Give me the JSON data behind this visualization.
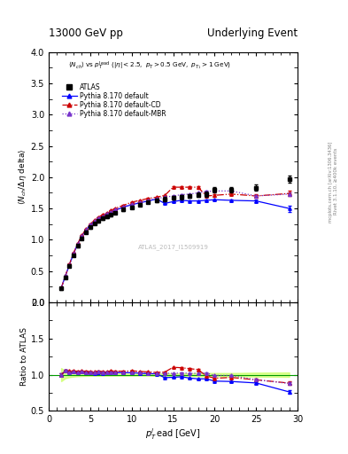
{
  "title_left": "13000 GeV pp",
  "title_right": "Underlying Event",
  "right_label_top": "Rivet 3.1.10, ≥400k events",
  "right_label_bot": "mcplots.cern.ch [arXiv:1306.3436]",
  "watermark": "ATLAS_2017_I1509919",
  "ylabel_main": "⟨N_{ch} / Δη delta⟩",
  "ylabel_ratio": "Ratio to ATLAS",
  "xlabel": "p_{T}^{l}ead [GeV]",
  "xlim": [
    0,
    30
  ],
  "ylim_main": [
    0,
    4
  ],
  "ylim_ratio": [
    0.5,
    2
  ],
  "yticks_main": [
    0,
    0.5,
    1.0,
    1.5,
    2.0,
    2.5,
    3.0,
    3.5,
    4.0
  ],
  "yticks_ratio": [
    0.5,
    1.0,
    1.5,
    2.0
  ],
  "atlas_x": [
    1.5,
    2.0,
    2.5,
    3.0,
    3.5,
    4.0,
    4.5,
    5.0,
    5.5,
    6.0,
    6.5,
    7.0,
    7.5,
    8.0,
    9.0,
    10.0,
    11.0,
    12.0,
    13.0,
    14.0,
    15.0,
    16.0,
    17.0,
    18.0,
    19.0,
    20.0,
    22.0,
    25.0,
    29.0
  ],
  "atlas_y": [
    0.22,
    0.4,
    0.58,
    0.75,
    0.9,
    1.02,
    1.12,
    1.2,
    1.26,
    1.3,
    1.34,
    1.37,
    1.4,
    1.43,
    1.48,
    1.52,
    1.56,
    1.6,
    1.63,
    1.65,
    1.67,
    1.68,
    1.7,
    1.72,
    1.73,
    1.8,
    1.8,
    1.83,
    1.97
  ],
  "atlas_yerr": [
    0.02,
    0.02,
    0.02,
    0.02,
    0.02,
    0.02,
    0.02,
    0.02,
    0.02,
    0.02,
    0.02,
    0.02,
    0.02,
    0.02,
    0.02,
    0.02,
    0.02,
    0.02,
    0.03,
    0.03,
    0.03,
    0.03,
    0.03,
    0.04,
    0.04,
    0.04,
    0.04,
    0.05,
    0.06
  ],
  "py_default_x": [
    1.5,
    2.0,
    2.5,
    3.0,
    3.5,
    4.0,
    4.5,
    5.0,
    5.5,
    6.0,
    6.5,
    7.0,
    7.5,
    8.0,
    9.0,
    10.0,
    11.0,
    12.0,
    13.0,
    14.0,
    15.0,
    16.0,
    17.0,
    18.0,
    19.0,
    20.0,
    22.0,
    25.0,
    29.0
  ],
  "py_default_y": [
    0.22,
    0.42,
    0.6,
    0.78,
    0.93,
    1.06,
    1.16,
    1.23,
    1.29,
    1.34,
    1.37,
    1.41,
    1.44,
    1.47,
    1.52,
    1.56,
    1.59,
    1.62,
    1.65,
    1.58,
    1.61,
    1.63,
    1.62,
    1.62,
    1.63,
    1.64,
    1.63,
    1.62,
    1.5
  ],
  "py_default_yerr": [
    0.005,
    0.005,
    0.005,
    0.005,
    0.005,
    0.005,
    0.005,
    0.005,
    0.005,
    0.005,
    0.005,
    0.005,
    0.005,
    0.005,
    0.005,
    0.005,
    0.005,
    0.005,
    0.01,
    0.01,
    0.01,
    0.01,
    0.01,
    0.01,
    0.01,
    0.01,
    0.01,
    0.02,
    0.05
  ],
  "py_cd_x": [
    1.5,
    2.0,
    2.5,
    3.0,
    3.5,
    4.0,
    4.5,
    5.0,
    5.5,
    6.0,
    6.5,
    7.0,
    7.5,
    8.0,
    9.0,
    10.0,
    11.0,
    12.0,
    13.0,
    14.0,
    15.0,
    16.0,
    17.0,
    18.0,
    19.0,
    20.0,
    22.0,
    25.0,
    29.0
  ],
  "py_cd_y": [
    0.22,
    0.42,
    0.61,
    0.79,
    0.94,
    1.07,
    1.17,
    1.25,
    1.31,
    1.36,
    1.4,
    1.43,
    1.47,
    1.5,
    1.55,
    1.6,
    1.63,
    1.66,
    1.68,
    1.71,
    1.84,
    1.84,
    1.84,
    1.84,
    1.7,
    1.71,
    1.73,
    1.7,
    1.74
  ],
  "py_cd_yerr": [
    0.005,
    0.005,
    0.005,
    0.005,
    0.005,
    0.005,
    0.005,
    0.005,
    0.005,
    0.005,
    0.005,
    0.005,
    0.005,
    0.005,
    0.005,
    0.005,
    0.005,
    0.005,
    0.005,
    0.01,
    0.01,
    0.01,
    0.01,
    0.02,
    0.02,
    0.02,
    0.02,
    0.03,
    0.04
  ],
  "py_mbr_x": [
    1.5,
    2.0,
    2.5,
    3.0,
    3.5,
    4.0,
    4.5,
    5.0,
    5.5,
    6.0,
    6.5,
    7.0,
    7.5,
    8.0,
    9.0,
    10.0,
    11.0,
    12.0,
    13.0,
    14.0,
    15.0,
    16.0,
    17.0,
    18.0,
    19.0,
    20.0,
    22.0,
    25.0,
    29.0
  ],
  "py_mbr_y": [
    0.22,
    0.42,
    0.6,
    0.78,
    0.93,
    1.06,
    1.16,
    1.24,
    1.3,
    1.35,
    1.38,
    1.42,
    1.45,
    1.48,
    1.53,
    1.57,
    1.6,
    1.63,
    1.66,
    1.68,
    1.7,
    1.72,
    1.73,
    1.75,
    1.77,
    1.78,
    1.78,
    1.7,
    1.73
  ],
  "py_mbr_yerr": [
    0.005,
    0.005,
    0.005,
    0.005,
    0.005,
    0.005,
    0.005,
    0.005,
    0.005,
    0.005,
    0.005,
    0.005,
    0.005,
    0.005,
    0.005,
    0.005,
    0.005,
    0.005,
    0.005,
    0.005,
    0.005,
    0.005,
    0.005,
    0.01,
    0.01,
    0.01,
    0.01,
    0.02,
    0.03
  ],
  "ratio_band_color": "#ccff66",
  "ratio_band_alpha": 0.7,
  "ratio_line_color": "#009900",
  "color_atlas": "black",
  "color_default": "blue",
  "color_cd": "#cc0000",
  "color_mbr": "#7733cc",
  "legend_labels": [
    "ATLAS",
    "Pythia 8.170 default",
    "Pythia 8.170 default-CD",
    "Pythia 8.170 default-MBR"
  ]
}
